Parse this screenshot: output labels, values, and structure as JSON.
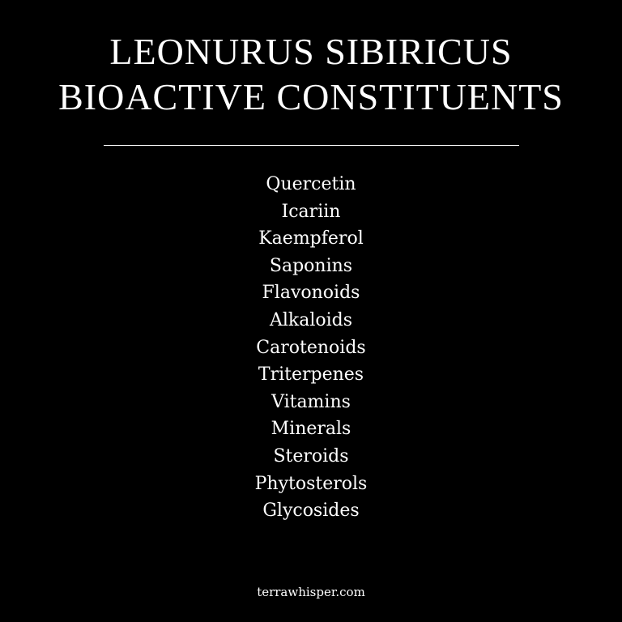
{
  "title": {
    "line1": "LEONURUS SIBIRICUS",
    "line2": "BIOACTIVE CONSTITUENTS"
  },
  "constituents": [
    "Quercetin",
    "Icariin",
    "Kaempferol",
    "Saponins",
    "Flavonoids",
    "Alkaloids",
    "Carotenoids",
    "Triterpenes",
    "Vitamins",
    "Minerals",
    "Steroids",
    "Phytosterols",
    "Glycosides"
  ],
  "footer": {
    "website": "terrawhisper.com"
  },
  "colors": {
    "background": "#000000",
    "text": "#ffffff"
  }
}
